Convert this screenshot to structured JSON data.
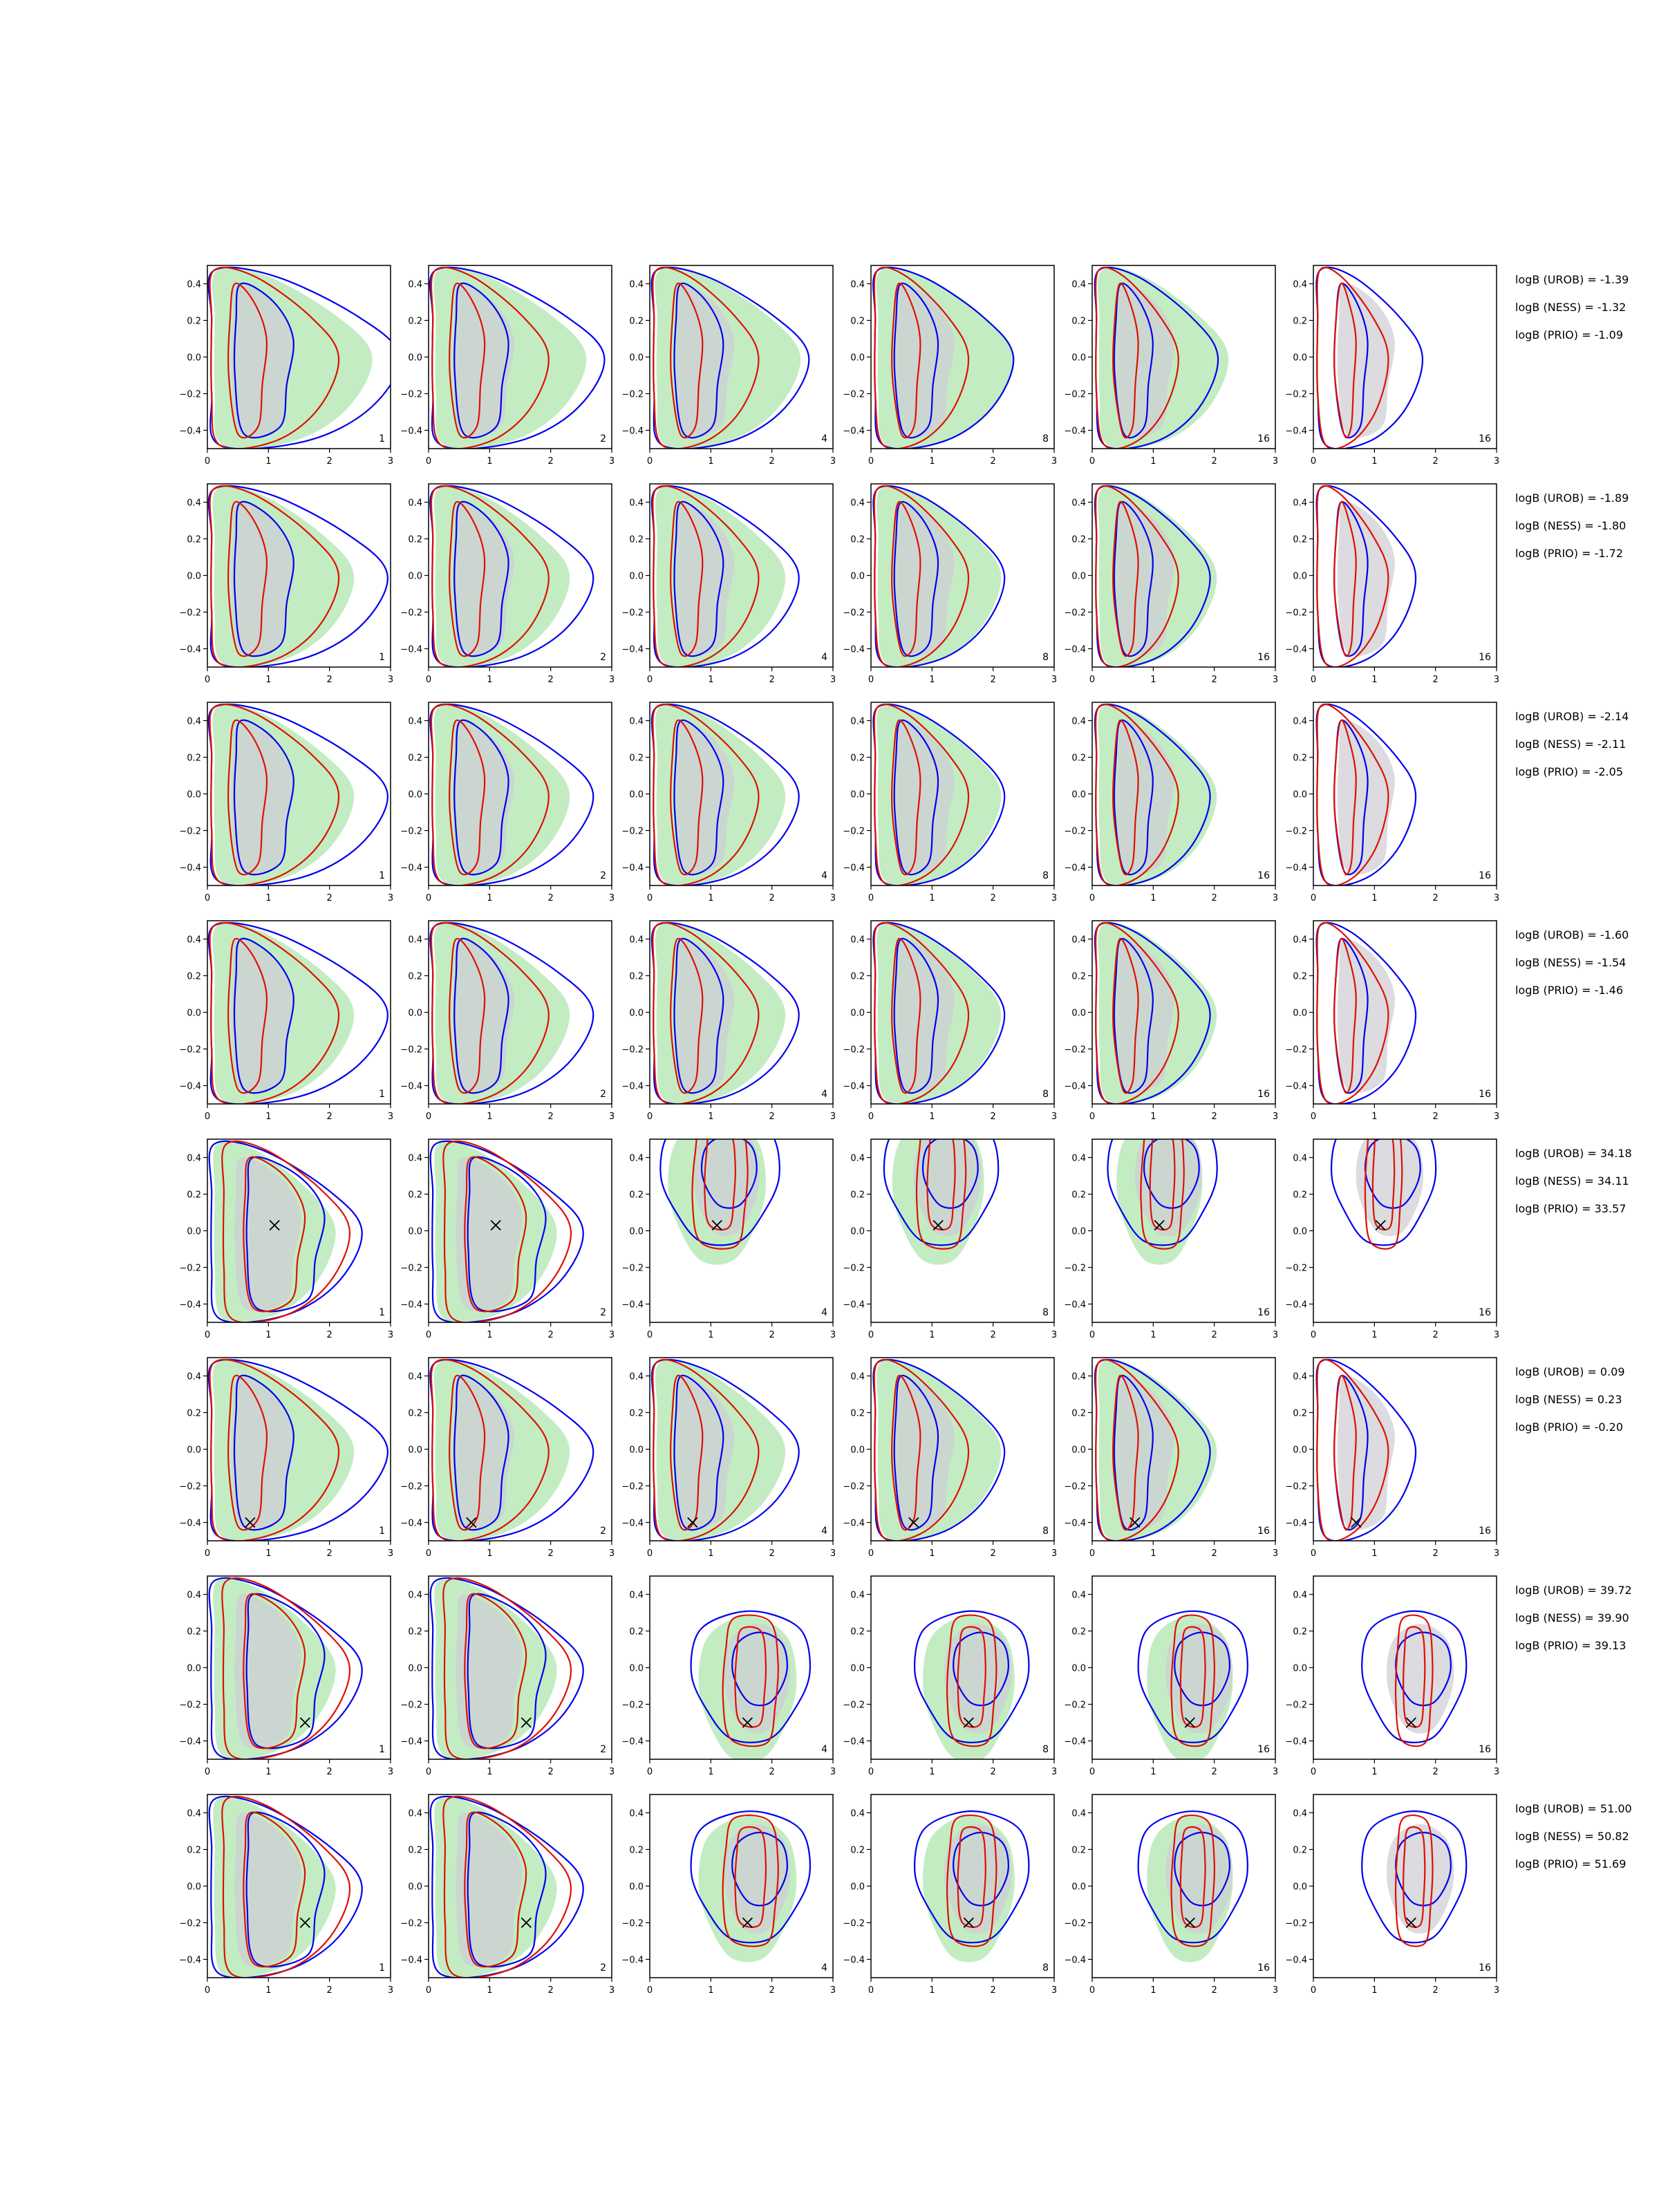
{
  "chart_data": {
    "type": "contour",
    "grid": {
      "rows": 8,
      "cols": 6
    },
    "xlim": [
      0,
      3
    ],
    "ylim": [
      -0.5,
      0.5
    ],
    "xticks": [
      "0",
      "1",
      "2",
      "3"
    ],
    "yticks": [
      "0.4",
      "0.2",
      "0.0",
      "−0.2",
      "−0.4"
    ],
    "ytick_values": [
      0.4,
      0.2,
      0.0,
      -0.2,
      -0.4
    ],
    "col_labels": [
      "1",
      "2",
      "4",
      "8",
      "16",
      "16"
    ],
    "colors": {
      "green_fill": "#c3ecc3",
      "gray_fill": "#cfcfd6",
      "blue_line": "#0000ee",
      "red_line": "#dd1100",
      "marker": "#000000"
    },
    "rows": [
      {
        "logb": [
          "logB (UROB) = -1.39",
          "logB (NESS) = -1.32",
          "logB (PRIO) = -1.09"
        ],
        "marker": null,
        "style": "A"
      },
      {
        "logb": [
          "logB (UROB) = -1.89",
          "logB (NESS) = -1.80",
          "logB (PRIO) = -1.72"
        ],
        "marker": null,
        "style": "B"
      },
      {
        "logb": [
          "logB (UROB) = -2.14",
          "logB (NESS) = -2.11",
          "logB (PRIO) = -2.05"
        ],
        "marker": null,
        "style": "B"
      },
      {
        "logb": [
          "logB (UROB) = -1.60",
          "logB (NESS) = -1.54",
          "logB (PRIO) = -1.46"
        ],
        "marker": null,
        "style": "B"
      },
      {
        "logb": [
          "logB (UROB) = 34.18",
          "logB (NESS) = 34.11",
          "logB (PRIO) = 33.57"
        ],
        "marker": [
          1.1,
          0.03
        ],
        "style": "C"
      },
      {
        "logb": [
          "logB (UROB) = 0.09",
          "logB (NESS) = 0.23",
          "logB (PRIO) = -0.20"
        ],
        "marker": [
          0.7,
          -0.4
        ],
        "style": "B"
      },
      {
        "logb": [
          "logB (UROB) = 39.72",
          "logB (NESS) = 39.90",
          "logB (PRIO) = 39.13"
        ],
        "marker": [
          1.6,
          -0.3
        ],
        "style": "C"
      },
      {
        "logb": [
          "logB (UROB) = 51.00",
          "logB (NESS) = 50.82",
          "logB (PRIO) = 51.69"
        ],
        "marker": [
          1.6,
          -0.2
        ],
        "style": "C"
      }
    ]
  }
}
